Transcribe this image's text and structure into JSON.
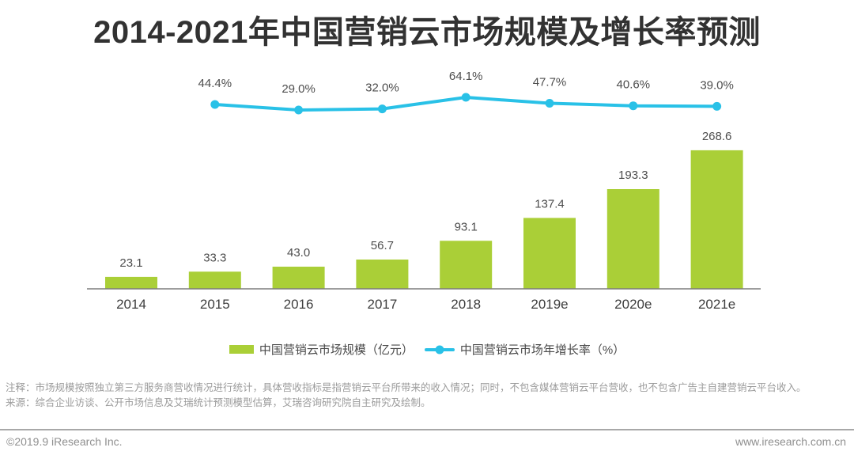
{
  "title": "2014-2021年中国营销云市场规模及增长率预测",
  "chart_data": {
    "type": "bar+line",
    "title": "2014-2021年中国营销云市场规模及增长率预测",
    "categories": [
      "2014",
      "2015",
      "2016",
      "2017",
      "2018",
      "2019e",
      "2020e",
      "2021e"
    ],
    "series": [
      {
        "name": "中国营销云市场规模（亿元）",
        "type": "bar",
        "color": "#aacf37",
        "values": [
          23.1,
          33.3,
          43.0,
          56.7,
          93.1,
          137.4,
          193.3,
          268.6
        ],
        "value_labels": [
          "23.1",
          "33.3",
          "43.0",
          "56.7",
          "93.1",
          "137.4",
          "193.3",
          "268.6"
        ]
      },
      {
        "name": "中国营销云市场年增长率（%）",
        "type": "line",
        "color": "#29c1e7",
        "values": [
          null,
          44.4,
          29.0,
          32.0,
          64.1,
          47.7,
          40.6,
          39.0
        ],
        "value_labels": [
          "",
          "44.4%",
          "29.0%",
          "32.0%",
          "64.1%",
          "47.7%",
          "40.6%",
          "39.0%"
        ]
      }
    ],
    "xlabel": "",
    "ylabel": "",
    "grid": false,
    "legend_position": "bottom",
    "axis_color": "#7d7d7d"
  },
  "legend": {
    "bar_label": "中国营销云市场规模（亿元）",
    "line_label": "中国营销云市场年增长率（%）"
  },
  "notes": {
    "annotation": "注释：市场规模按照独立第三方服务商营收情况进行统计，具体营收指标是指营销云平台所带来的收入情况；同时，不包含媒体营销云平台营收，也不包含广告主自建营销云平台收入。",
    "source": "来源：综合企业访谈、公开市场信息及艾瑞统计预测模型估算，艾瑞咨询研究院自主研究及绘制。"
  },
  "footer": {
    "copyright": "©2019.9 iResearch Inc.",
    "website": "www.iresearch.com.cn"
  },
  "colors": {
    "bar": "#aacf37",
    "line": "#29c1e7",
    "title_text": "#323232",
    "note_text": "#9b9b9b"
  }
}
